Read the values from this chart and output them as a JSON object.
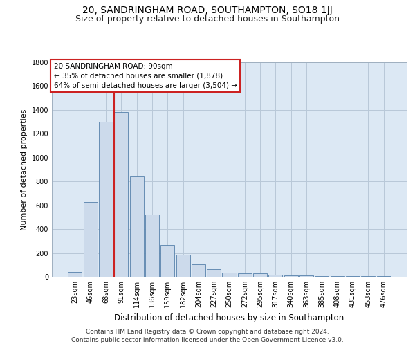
{
  "title": "20, SANDRINGHAM ROAD, SOUTHAMPTON, SO18 1JJ",
  "subtitle": "Size of property relative to detached houses in Southampton",
  "xlabel": "Distribution of detached houses by size in Southampton",
  "ylabel": "Number of detached properties",
  "categories": [
    "23sqm",
    "46sqm",
    "68sqm",
    "91sqm",
    "114sqm",
    "136sqm",
    "159sqm",
    "182sqm",
    "204sqm",
    "227sqm",
    "250sqm",
    "272sqm",
    "295sqm",
    "317sqm",
    "340sqm",
    "363sqm",
    "385sqm",
    "408sqm",
    "431sqm",
    "453sqm",
    "476sqm"
  ],
  "values": [
    42,
    630,
    1300,
    1380,
    840,
    525,
    270,
    185,
    105,
    65,
    35,
    30,
    30,
    20,
    10,
    10,
    8,
    5,
    5,
    3,
    3
  ],
  "bar_color": "#ccdaeb",
  "bar_edge_color": "#5580aa",
  "grid_color": "#b8c8d8",
  "background_color": "#dce8f4",
  "annotation_text": "20 SANDRINGHAM ROAD: 90sqm\n← 35% of detached houses are smaller (1,878)\n64% of semi-detached houses are larger (3,504) →",
  "annotation_box_color": "#ffffff",
  "annotation_border_color": "#cc2222",
  "ylim": [
    0,
    1800
  ],
  "yticks": [
    0,
    200,
    400,
    600,
    800,
    1000,
    1200,
    1400,
    1600,
    1800
  ],
  "footer_line1": "Contains HM Land Registry data © Crown copyright and database right 2024.",
  "footer_line2": "Contains public sector information licensed under the Open Government Licence v3.0.",
  "title_fontsize": 10,
  "subtitle_fontsize": 9,
  "xlabel_fontsize": 8.5,
  "ylabel_fontsize": 8,
  "tick_fontsize": 7,
  "annotation_fontsize": 7.5,
  "footer_fontsize": 6.5,
  "fig_bg": "#ffffff"
}
